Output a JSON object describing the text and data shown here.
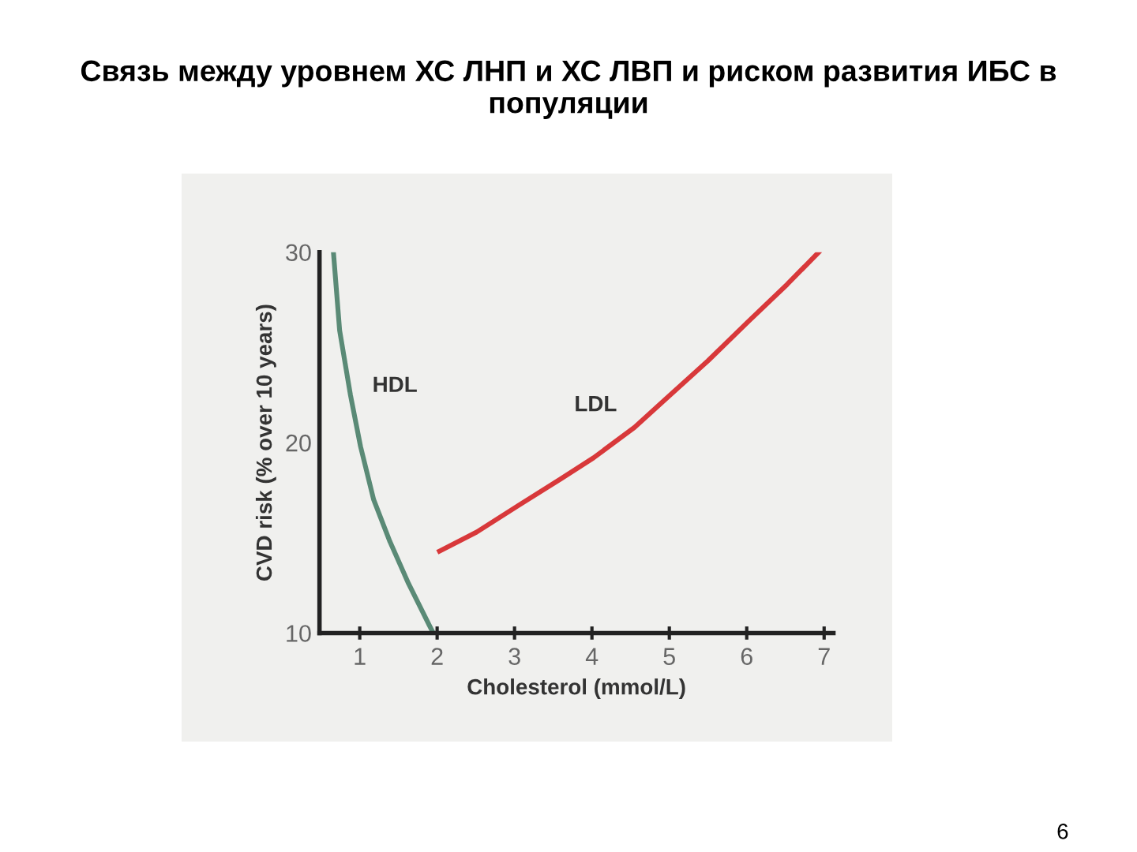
{
  "chart_data": {
    "type": "line",
    "title": "Связь между уровнем ХС ЛНП и ХС ЛВП и риском развития ИБС в популяции",
    "xlabel": "Cholesterol (mmol/L)",
    "ylabel": "CVD risk (% over 10 years)",
    "xlim": [
      0.48,
      7.12
    ],
    "ylim": [
      10,
      30
    ],
    "xticks": [
      1,
      2,
      3,
      4,
      5,
      6,
      7
    ],
    "yticks": [
      10,
      20,
      30
    ],
    "grid": false,
    "legend": false,
    "marker": "none",
    "line_style": "solid",
    "annotations": [
      "6"
    ],
    "series": [
      {
        "name": "HDL",
        "color": "#5a8a76",
        "x": [
          0.66,
          0.74,
          0.88,
          1.01,
          1.18,
          1.39,
          1.63,
          1.9,
          1.95
        ],
        "values": [
          30,
          25.9,
          22.5,
          19.8,
          17.0,
          14.8,
          12.6,
          10.4,
          10
        ]
      },
      {
        "name": "LDL",
        "color": "#d8383a",
        "x": [
          2.03,
          2.51,
          3.05,
          3.6,
          4.02,
          4.55,
          5.01,
          5.5,
          6.03,
          6.52,
          6.93
        ],
        "values": [
          14.3,
          15.3,
          16.7,
          18.1,
          19.2,
          20.8,
          22.5,
          24.3,
          26.4,
          28.3,
          30.0
        ]
      }
    ]
  }
}
